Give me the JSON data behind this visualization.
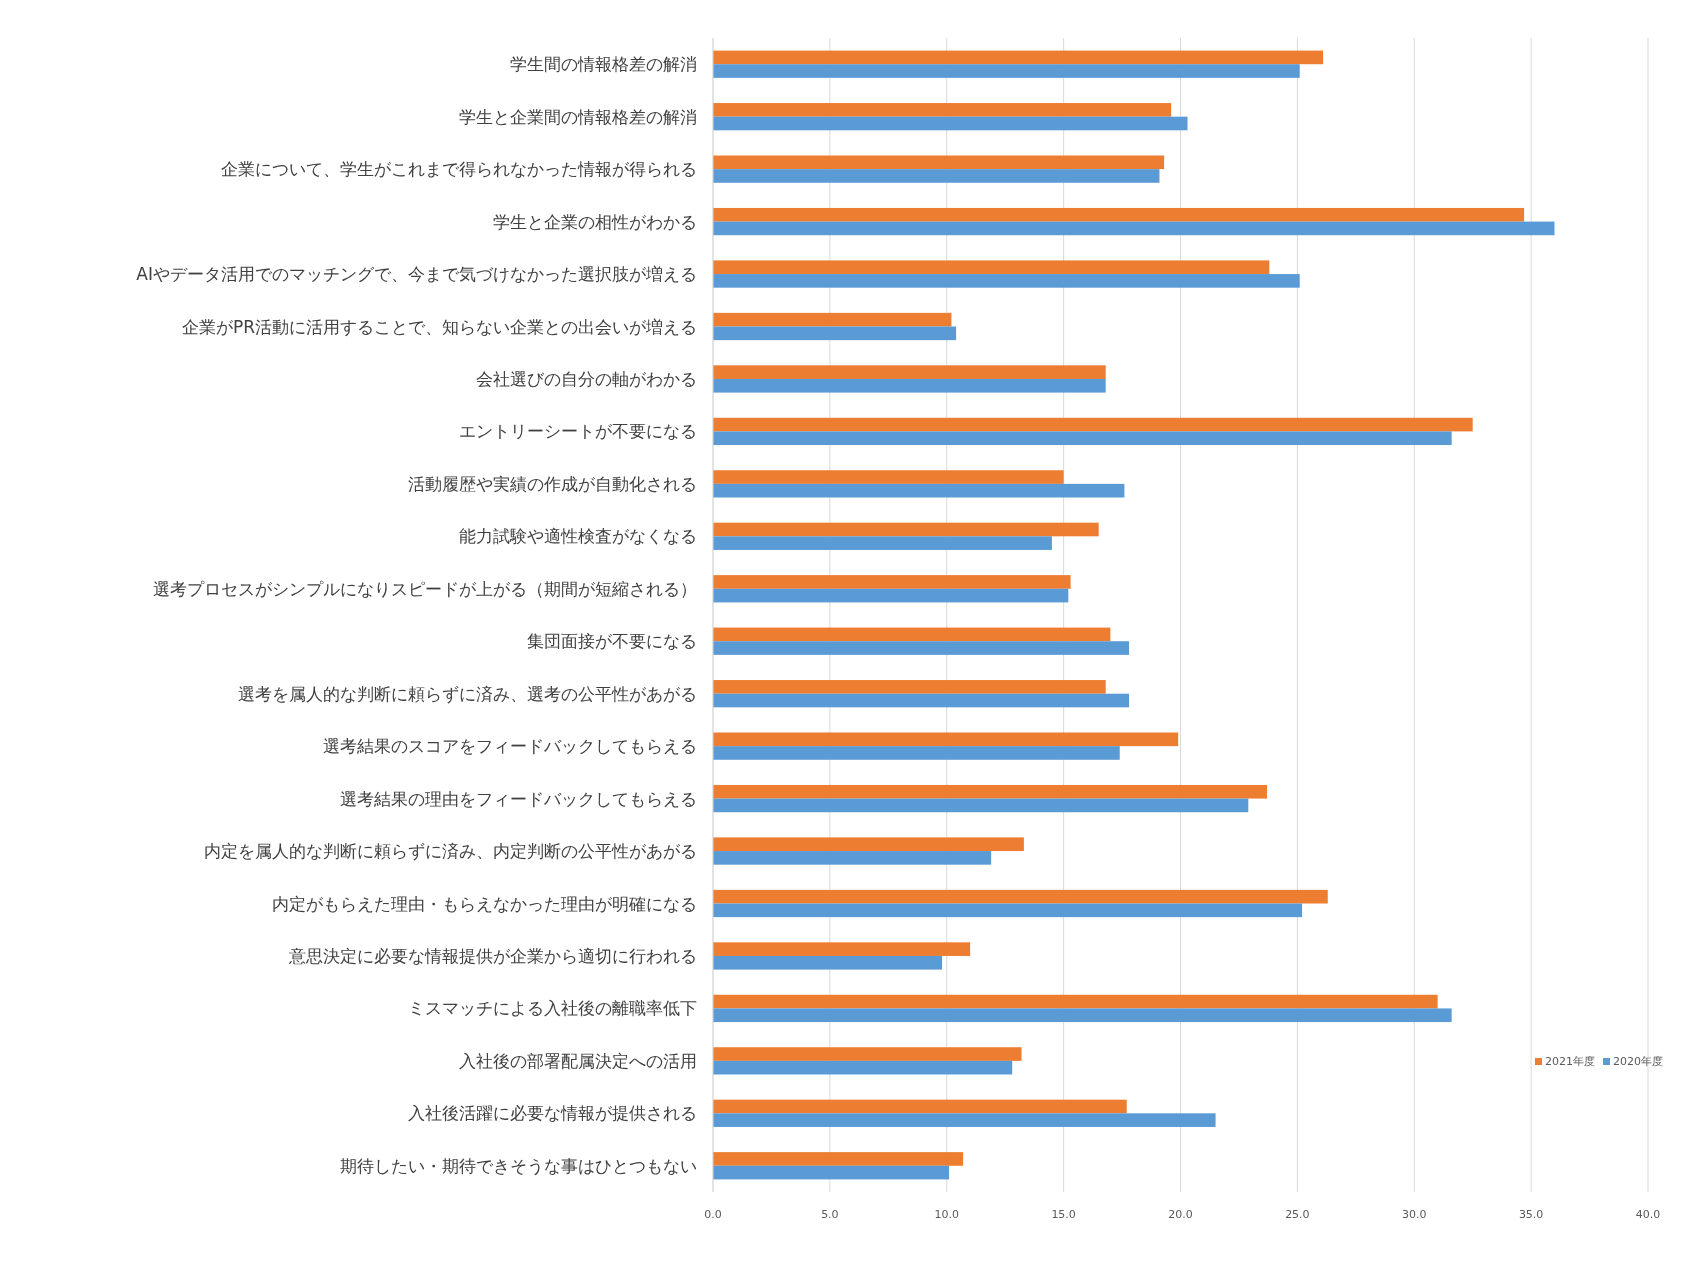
{
  "chart_data": {
    "type": "bar",
    "orientation": "horizontal",
    "categories": [
      "学生間の情報格差の解消",
      "学生と企業間の情報格差の解消",
      "企業について、学生がこれまで得られなかった情報が得られる",
      "学生と企業の相性がわかる",
      "AIやデータ活用でのマッチングで、今まで気づけなかった選択肢が増える",
      "企業がPR活動に活用することで、知らない企業との出会いが増える",
      "会社選びの自分の軸がわかる",
      "エントリーシートが不要になる",
      "活動履歴や実績の作成が自動化される",
      "能力試験や適性検査がなくなる",
      "選考プロセスがシンプルになりスピードが上がる（期間が短縮される）",
      "集団面接が不要になる",
      "選考を属人的な判断に頼らずに済み、選考の公平性があがる",
      "選考結果のスコアをフィードバックしてもらえる",
      "選考結果の理由をフィードバックしてもらえる",
      "内定を属人的な判断に頼らずに済み、内定判断の公平性があがる",
      "内定がもらえた理由・もらえなかった理由が明確になる",
      "意思決定に必要な情報提供が企業から適切に行われる",
      "ミスマッチによる入社後の離職率低下",
      "入社後の部署配属決定への活用",
      "入社後活躍に必要な情報が提供される",
      "期待したい・期待できそうな事はひとつもない"
    ],
    "series": [
      {
        "name": "2021年度",
        "color": "#ed7d31",
        "values": [
          26.1,
          19.6,
          19.3,
          34.7,
          23.8,
          10.2,
          16.8,
          32.5,
          15.0,
          16.5,
          15.3,
          17.0,
          16.8,
          19.9,
          23.7,
          13.3,
          26.3,
          11.0,
          31.0,
          13.2,
          17.7,
          10.7
        ]
      },
      {
        "name": "2020年度",
        "color": "#5b9bd5",
        "values": [
          25.1,
          20.3,
          19.1,
          36.0,
          25.1,
          10.4,
          16.8,
          31.6,
          17.6,
          14.5,
          15.2,
          17.8,
          17.8,
          17.4,
          22.9,
          11.9,
          25.2,
          9.8,
          31.6,
          12.8,
          21.5,
          10.1
        ]
      }
    ],
    "xlim": [
      0,
      40
    ],
    "xticks": [
      {
        "value": 0,
        "label": "0.0"
      },
      {
        "value": 5,
        "label": "5.0"
      },
      {
        "value": 10,
        "label": "10.0"
      },
      {
        "value": 15,
        "label": "15.0"
      },
      {
        "value": 20,
        "label": "20.0"
      },
      {
        "value": 25,
        "label": "25.0"
      },
      {
        "value": 30,
        "label": "30.0"
      },
      {
        "value": 35,
        "label": "35.0"
      },
      {
        "value": 40,
        "label": "40.0"
      }
    ],
    "grid": "x",
    "legend": "right"
  }
}
